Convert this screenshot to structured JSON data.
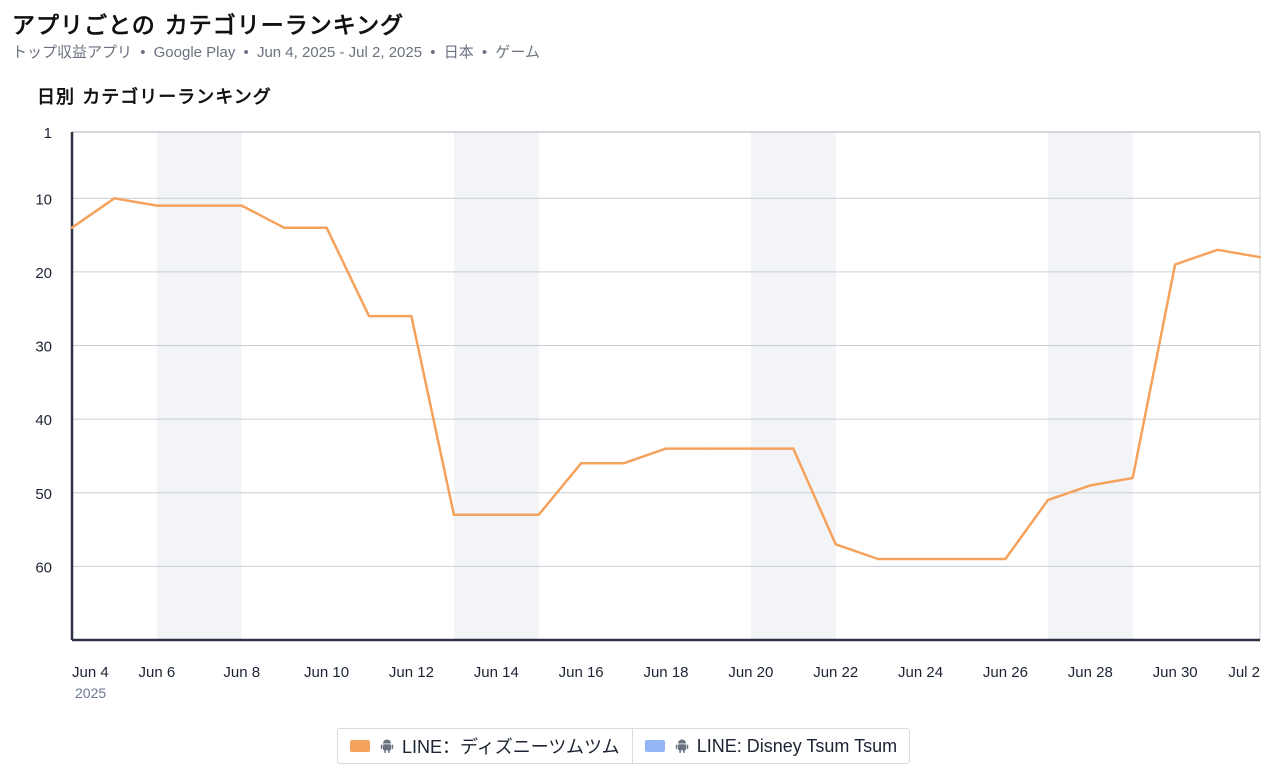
{
  "header": {
    "title": "アプリごとの カテゴリーランキング",
    "subtitle_parts": [
      "トップ収益アプリ",
      "Google Play",
      "Jun 4, 2025 - Jul 2, 2025",
      "日本",
      "ゲーム"
    ],
    "separator": "•"
  },
  "section_title": "日別 カテゴリーランキング",
  "colors": {
    "series_1": "#f5a25d",
    "series_2": "#93b5f5",
    "weekend_band": "#f3f4f7",
    "gridline": "#c9cdd4",
    "axis": "#2b3345"
  },
  "legend": [
    {
      "label": "LINE：ディズニーツムツム",
      "icon": "android-icon",
      "color": "#f5a25d"
    },
    {
      "label": "LINE: Disney Tsum Tsum",
      "icon": "android-icon",
      "color": "#93b5f5"
    }
  ],
  "chart_data": {
    "type": "line",
    "title": "日別 カテゴリーランキング",
    "y_inverted": true,
    "ylim": [
      1,
      70
    ],
    "y_ticks": [
      1,
      10,
      20,
      30,
      40,
      50,
      60
    ],
    "x_start": "Jun 4",
    "x_ticks": [
      "Jun 4",
      "Jun 6",
      "Jun 8",
      "Jun 10",
      "Jun 12",
      "Jun 14",
      "Jun 16",
      "Jun 18",
      "Jun 20",
      "Jun 22",
      "Jun 24",
      "Jun 26",
      "Jun 28",
      "Jun 30",
      "Jul 2"
    ],
    "x_tick_year": "2025",
    "weekend_bands": [
      [
        "Jun 6",
        "Jun 8"
      ],
      [
        "Jun 13",
        "Jun 15"
      ],
      [
        "Jun 20",
        "Jun 22"
      ],
      [
        "Jun 27",
        "Jun 29"
      ]
    ],
    "grid": true,
    "legend_position": "bottom-center",
    "series": [
      {
        "name": "LINE：ディズニーツムツム",
        "color": "#f5a25d",
        "x": [
          "Jun 4",
          "Jun 5",
          "Jun 6",
          "Jun 7",
          "Jun 8",
          "Jun 9",
          "Jun 10",
          "Jun 11",
          "Jun 12",
          "Jun 13",
          "Jun 14",
          "Jun 15",
          "Jun 16",
          "Jun 17",
          "Jun 18",
          "Jun 19",
          "Jun 20",
          "Jun 21",
          "Jun 22",
          "Jun 23",
          "Jun 24",
          "Jun 25",
          "Jun 26",
          "Jun 27",
          "Jun 28",
          "Jun 29",
          "Jun 30",
          "Jul 1",
          "Jul 2"
        ],
        "values": [
          14,
          10,
          11,
          11,
          11,
          14,
          14,
          26,
          26,
          53,
          53,
          53,
          46,
          46,
          44,
          44,
          44,
          44,
          57,
          59,
          59,
          59,
          59,
          51,
          49,
          48,
          19,
          17,
          18
        ]
      },
      {
        "name": "LINE: Disney Tsum Tsum",
        "color": "#93b5f5",
        "x": [],
        "values": []
      }
    ]
  }
}
